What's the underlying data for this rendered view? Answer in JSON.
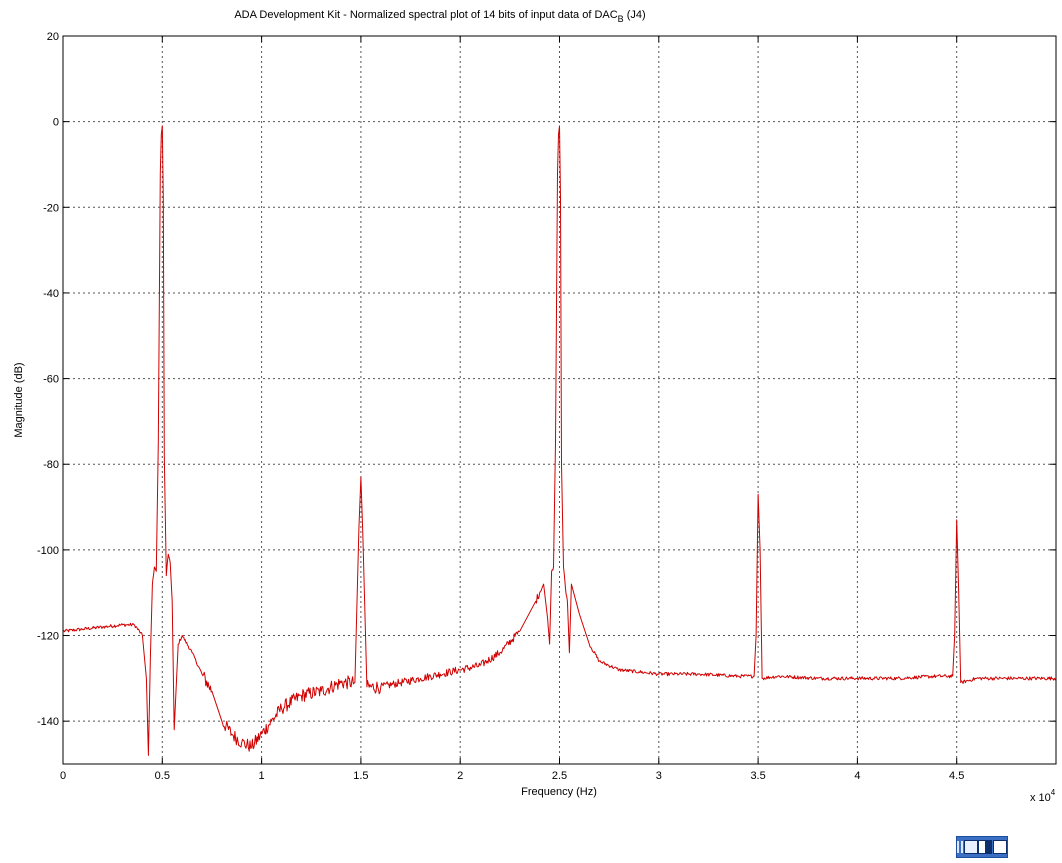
{
  "chart_data": {
    "type": "line",
    "title": "ADA Development Kit - Normalized spectral plot of 14 bits of input data of DAC",
    "title_subscript": "B",
    "title_suffix": " (J4)",
    "xlabel": "Frequency (Hz)",
    "ylabel": "Magnitude (dB)",
    "x_multiplier_label": "x 10",
    "x_multiplier_exponent": "4",
    "xlim": [
      0,
      5
    ],
    "ylim": [
      -150,
      20
    ],
    "xticks": [
      0,
      0.5,
      1,
      1.5,
      2,
      2.5,
      3,
      3.5,
      4,
      4.5
    ],
    "xtick_labels": [
      "0",
      "0.5",
      "1",
      "1.5",
      "2",
      "2.5",
      "3",
      "3.5",
      "4",
      "4.5"
    ],
    "yticks": [
      20,
      0,
      -20,
      -40,
      -60,
      -80,
      -100,
      -120,
      -140
    ],
    "ytick_labels": [
      "20",
      "0",
      "-20",
      "-40",
      "-60",
      "-80",
      "-100",
      "-120",
      "-140"
    ],
    "grid": true,
    "line_color": "#d00000",
    "series": [
      {
        "x": [
          0,
          0.1,
          0.2,
          0.3,
          0.36,
          0.4,
          0.42,
          0.43,
          0.44,
          0.45,
          0.46,
          0.47,
          0.48,
          0.49,
          0.495,
          0.5,
          0.505,
          0.51,
          0.52,
          0.53,
          0.54,
          0.55,
          0.56,
          0.58,
          0.6,
          0.65,
          0.7,
          0.75,
          0.8,
          0.85,
          0.9,
          0.95,
          1.0,
          1.05,
          1.1,
          1.2,
          1.3,
          1.4,
          1.47,
          1.49,
          1.5,
          1.51,
          1.53,
          1.6,
          1.7,
          1.8,
          1.9,
          2.0,
          2.1,
          2.2,
          2.3,
          2.38,
          2.42,
          2.44,
          2.45,
          2.46,
          2.47,
          2.48,
          2.49,
          2.495,
          2.5,
          2.505,
          2.51,
          2.52,
          2.53,
          2.54,
          2.55,
          2.56,
          2.6,
          2.65,
          2.7,
          2.8,
          2.9,
          3.0,
          3.2,
          3.4,
          3.48,
          3.49,
          3.5,
          3.51,
          3.52,
          3.6,
          3.8,
          4.0,
          4.2,
          4.4,
          4.48,
          4.49,
          4.5,
          4.51,
          4.52,
          4.6,
          4.8,
          5.0
        ],
        "y": [
          -119,
          -118.5,
          -118,
          -117.5,
          -117.5,
          -120,
          -130,
          -148,
          -125,
          -108,
          -104,
          -105,
          -75,
          -12,
          -3,
          -1,
          -18,
          -78,
          -106,
          -101,
          -103,
          -112,
          -142,
          -122,
          -120,
          -124,
          -129,
          -133,
          -140,
          -143,
          -145,
          -146,
          -143,
          -140,
          -137,
          -134,
          -133,
          -131,
          -131,
          -95,
          -83,
          -97,
          -132,
          -132,
          -131,
          -130,
          -129,
          -128,
          -127,
          -124,
          -119,
          -112,
          -108,
          -116,
          -122,
          -105,
          -104,
          -75,
          -12,
          -3,
          -1,
          -18,
          -80,
          -104,
          -109,
          -112,
          -124,
          -108,
          -115,
          -122,
          -126,
          -128,
          -128.5,
          -129,
          -129,
          -129.5,
          -129.5,
          -120,
          -87,
          -100,
          -130,
          -129.5,
          -130,
          -130,
          -130,
          -129.5,
          -129.5,
          -120,
          -93,
          -110,
          -131,
          -130,
          -130,
          -130
        ]
      }
    ]
  },
  "taskbar": {
    "icons": [
      "language-bar-grip-icon",
      "ime-mode-icon",
      "input-pad-icon",
      "help-icon"
    ]
  }
}
